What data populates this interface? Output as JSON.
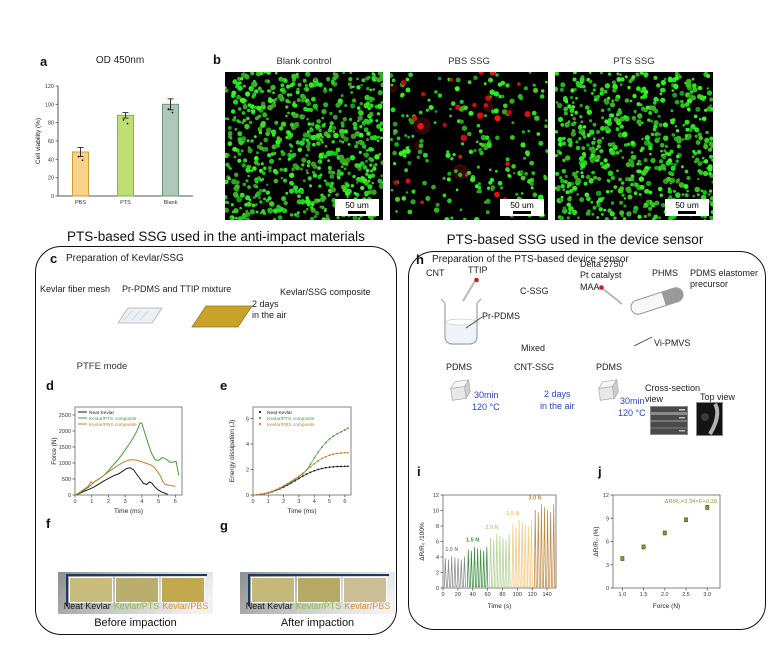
{
  "panels": {
    "a": "a",
    "b": "b",
    "c": "c",
    "d": "d",
    "e": "e",
    "f": "f",
    "g": "g",
    "h": "h",
    "i": "i",
    "j": "j"
  },
  "sections": {
    "left_title": "PTS-based SSG used in the anti-impact materials",
    "right_title": "PTS-based SSG used in the device sensor"
  },
  "panel_b": {
    "scale_label": "50 um",
    "images": [
      {
        "title": "Blank control",
        "seed": 11,
        "green_dots": 700,
        "red_dots": 0,
        "dim_red_blobs": 0
      },
      {
        "title": "PBS SSG",
        "seed": 22,
        "green_dots": 215,
        "red_dots": 26,
        "dim_red_blobs": 5
      },
      {
        "title": "PTS SSG",
        "seed": 33,
        "green_dots": 620,
        "red_dots": 0,
        "dim_red_blobs": 0
      }
    ]
  },
  "panel_c": {
    "title": "Preparation of Kevlar/SSG",
    "mesh_label": "Kevlar fiber mesh",
    "mixture_label": "Pr-PDMS and TTIP mixture",
    "composite_label": "Kevlar/SSG composite",
    "condition_line1": "2 days",
    "condition_line2": "in the air",
    "mesh_color": "#eceff4",
    "composite_color": "#c8a22b"
  },
  "panel_d": {
    "mode_title": "PTFE mode"
  },
  "panel_f": {
    "caption": "Before impaction",
    "labels": [
      "Neat Kevlar",
      "Kevlar/PTS",
      "Kevlar/PBS"
    ],
    "label_colors": [
      "#1a1a1a",
      "#8bbb4a",
      "#d9952f"
    ],
    "swatch_colors": [
      "#c9bd7e",
      "#b9ae6d",
      "#c2a94f"
    ]
  },
  "panel_g": {
    "caption": "After impaction",
    "labels": [
      "Neat Kevlar",
      "Kevlar/PTS",
      "Kevlar/PBS"
    ],
    "label_colors": [
      "#1a1a1a",
      "#8bbb4a",
      "#d9952f"
    ],
    "swatch_colors": [
      "#c4b87a",
      "#b5a966",
      "#cbbd94"
    ]
  },
  "panel_h": {
    "title": "Preparation of the PTS-based device sensor",
    "cnt": "CNT",
    "ttip": "TTIP",
    "cssg": "C-SSG",
    "delta": "Delta 2750",
    "pt_catalyst": "Pt catalyst",
    "maa": "MAA",
    "phms": "PHMS",
    "pdms_elastomer_1": "PDMS elastomer",
    "pdms_elastomer_2": "precursor",
    "pr_pdms": "Pr-PDMS",
    "mixed": "Mixed",
    "vi_pmvs": "Vi-PMVS",
    "pdms_left": "PDMS",
    "cnt_ssg": "CNT-SSG",
    "pdms_right": "PDMS",
    "cure1_line1": "30min",
    "cure1_line2": "120 °C",
    "air_line1": "2 days",
    "air_line2": "in the air",
    "cure2_line1": "30min",
    "cure2_line2": "120 °C",
    "cross_section_line1": "Cross-section",
    "cross_section_line2": "view",
    "top_view": "Top view",
    "blue_color": "#2943d0"
  },
  "chart_data": [
    {
      "id": "a",
      "type": "bar",
      "title": "OD 450nm",
      "ylabel": "Cell viability (%)",
      "xlim": [
        0,
        3
      ],
      "ylim": [
        0,
        120
      ],
      "yticks": [
        0,
        20,
        40,
        60,
        80,
        100,
        120
      ],
      "categories": [
        "PBS",
        "PTS",
        "Blank"
      ],
      "values": [
        48,
        88,
        100
      ],
      "errors": [
        5,
        3,
        6
      ],
      "bar_colors": [
        "#f7d489",
        "#bfdf72",
        "#aec9b9"
      ],
      "bar_edges": [
        "#cf9c3a",
        "#7fb843",
        "#72947f"
      ],
      "label_colors": [
        "#c3923d",
        "#7fb843",
        "#6e9180"
      ]
    },
    {
      "id": "d",
      "type": "line",
      "xlabel": "Time (ms)",
      "ylabel": "Force (N)",
      "xlim": [
        0,
        6.4
      ],
      "xticks": [
        0,
        1,
        2,
        3,
        4,
        5,
        6
      ],
      "ylim": [
        0,
        2750
      ],
      "yticks": [
        0,
        500,
        1000,
        1500,
        2000,
        2500
      ],
      "series": [
        {
          "name": "Neat Kevlar",
          "color": "#1a1a1a",
          "points": [
            [
              0,
              0
            ],
            [
              0.2,
              30
            ],
            [
              0.5,
              110
            ],
            [
              0.8,
              170
            ],
            [
              1.1,
              240
            ],
            [
              1.4,
              330
            ],
            [
              1.7,
              430
            ],
            [
              2.0,
              520
            ],
            [
              2.3,
              600
            ],
            [
              2.6,
              660
            ],
            [
              2.9,
              760
            ],
            [
              3.1,
              830
            ],
            [
              3.3,
              850
            ],
            [
              3.5,
              790
            ],
            [
              3.7,
              640
            ],
            [
              3.9,
              500
            ],
            [
              4.1,
              360
            ],
            [
              4.3,
              330
            ],
            [
              4.45,
              410
            ],
            [
              4.6,
              370
            ],
            [
              4.8,
              240
            ],
            [
              5.0,
              150
            ],
            [
              5.2,
              90
            ],
            [
              5.4,
              50
            ],
            [
              5.55,
              20
            ]
          ]
        },
        {
          "name": "Kevlar/PTS composite",
          "color": "#4a9b3c",
          "points": [
            [
              0,
              0
            ],
            [
              0.2,
              40
            ],
            [
              0.5,
              140
            ],
            [
              0.8,
              240
            ],
            [
              1.0,
              330
            ],
            [
              1.2,
              430
            ],
            [
              1.4,
              480
            ],
            [
              1.7,
              600
            ],
            [
              2.0,
              760
            ],
            [
              2.3,
              950
            ],
            [
              2.6,
              1120
            ],
            [
              2.9,
              1330
            ],
            [
              3.2,
              1560
            ],
            [
              3.5,
              1800
            ],
            [
              3.7,
              2000
            ],
            [
              3.9,
              2260
            ],
            [
              4.0,
              2230
            ],
            [
              4.2,
              1900
            ],
            [
              4.4,
              1560
            ],
            [
              4.6,
              1280
            ],
            [
              4.8,
              1100
            ],
            [
              5.0,
              1080
            ],
            [
              5.2,
              1170
            ],
            [
              5.35,
              1150
            ],
            [
              5.5,
              1100
            ],
            [
              5.7,
              1020
            ],
            [
              5.9,
              1030
            ],
            [
              6.05,
              1050
            ],
            [
              6.2,
              620
            ]
          ]
        },
        {
          "name": "Kevlar/PBS composite",
          "color": "#c97f2e",
          "points": [
            [
              0,
              0
            ],
            [
              0.2,
              60
            ],
            [
              0.5,
              170
            ],
            [
              0.8,
              280
            ],
            [
              0.95,
              420
            ],
            [
              1.05,
              370
            ],
            [
              1.2,
              430
            ],
            [
              1.5,
              530
            ],
            [
              1.8,
              640
            ],
            [
              2.1,
              760
            ],
            [
              2.4,
              870
            ],
            [
              2.7,
              970
            ],
            [
              3.0,
              1050
            ],
            [
              3.3,
              1100
            ],
            [
              3.6,
              1095
            ],
            [
              3.9,
              1060
            ],
            [
              4.2,
              1000
            ],
            [
              4.5,
              950
            ],
            [
              4.7,
              880
            ],
            [
              4.9,
              760
            ],
            [
              5.1,
              600
            ],
            [
              5.25,
              420
            ],
            [
              5.4,
              330
            ],
            [
              5.6,
              310
            ],
            [
              5.8,
              290
            ],
            [
              6.0,
              270
            ]
          ]
        }
      ]
    },
    {
      "id": "e",
      "type": "scatter-line",
      "xlabel": "Time (ms)",
      "ylabel": "Energy dissipation (J)",
      "xlim": [
        0,
        6.4
      ],
      "xticks": [
        0,
        1,
        2,
        3,
        4,
        5,
        6
      ],
      "ylim": [
        0,
        6.9
      ],
      "yticks": [
        0,
        2,
        4,
        6
      ],
      "series": [
        {
          "name": "Neat Kevlar",
          "color": "#1a1a1a",
          "points": [
            [
              0,
              0
            ],
            [
              0.25,
              0.02
            ],
            [
              0.5,
              0.05
            ],
            [
              0.75,
              0.1
            ],
            [
              1,
              0.16
            ],
            [
              1.25,
              0.25
            ],
            [
              1.5,
              0.36
            ],
            [
              1.75,
              0.48
            ],
            [
              2,
              0.62
            ],
            [
              2.25,
              0.78
            ],
            [
              2.5,
              0.95
            ],
            [
              2.75,
              1.12
            ],
            [
              3,
              1.3
            ],
            [
              3.25,
              1.48
            ],
            [
              3.5,
              1.64
            ],
            [
              3.75,
              1.78
            ],
            [
              4,
              1.9
            ],
            [
              4.25,
              2.0
            ],
            [
              4.5,
              2.08
            ],
            [
              4.75,
              2.14
            ],
            [
              5,
              2.18
            ],
            [
              5.25,
              2.21
            ],
            [
              5.5,
              2.23
            ],
            [
              5.75,
              2.24
            ],
            [
              6,
              2.25
            ],
            [
              6.2,
              2.25
            ]
          ]
        },
        {
          "name": "Kevlar/PTS composite",
          "color": "#4a9b3c",
          "points": [
            [
              0,
              0
            ],
            [
              0.25,
              0.02
            ],
            [
              0.5,
              0.05
            ],
            [
              0.75,
              0.1
            ],
            [
              1,
              0.17
            ],
            [
              1.25,
              0.27
            ],
            [
              1.5,
              0.38
            ],
            [
              1.75,
              0.52
            ],
            [
              2,
              0.68
            ],
            [
              2.25,
              0.85
            ],
            [
              2.5,
              1.03
            ],
            [
              2.75,
              1.22
            ],
            [
              3,
              1.42
            ],
            [
              3.25,
              1.65
            ],
            [
              3.5,
              1.95
            ],
            [
              3.75,
              2.4
            ],
            [
              4,
              2.9
            ],
            [
              4.25,
              3.35
            ],
            [
              4.5,
              3.75
            ],
            [
              4.75,
              4.1
            ],
            [
              5,
              4.4
            ],
            [
              5.25,
              4.62
            ],
            [
              5.5,
              4.8
            ],
            [
              5.75,
              4.95
            ],
            [
              6,
              5.1
            ],
            [
              6.2,
              5.25
            ]
          ]
        },
        {
          "name": "Kevlar/PBS composite",
          "color": "#c97f2e",
          "points": [
            [
              0,
              0
            ],
            [
              0.25,
              0.03
            ],
            [
              0.5,
              0.07
            ],
            [
              0.75,
              0.12
            ],
            [
              1,
              0.2
            ],
            [
              1.25,
              0.3
            ],
            [
              1.5,
              0.42
            ],
            [
              1.75,
              0.56
            ],
            [
              2,
              0.72
            ],
            [
              2.25,
              0.9
            ],
            [
              2.5,
              1.08
            ],
            [
              2.75,
              1.27
            ],
            [
              3,
              1.47
            ],
            [
              3.25,
              1.7
            ],
            [
              3.5,
              1.95
            ],
            [
              3.75,
              2.2
            ],
            [
              4,
              2.45
            ],
            [
              4.25,
              2.67
            ],
            [
              4.5,
              2.86
            ],
            [
              4.75,
              3.0
            ],
            [
              5,
              3.12
            ],
            [
              5.25,
              3.2
            ],
            [
              5.5,
              3.26
            ],
            [
              5.75,
              3.29
            ],
            [
              6,
              3.31
            ],
            [
              6.2,
              3.32
            ]
          ]
        }
      ]
    },
    {
      "id": "i",
      "type": "pulse",
      "xlabel": "Time (s)",
      "ylabel": "ΔR/R₀ /100%",
      "xlim": [
        0,
        152
      ],
      "xticks": [
        0,
        20,
        40,
        60,
        80,
        100,
        120,
        140
      ],
      "ylim": [
        0,
        12
      ],
      "yticks": [
        0,
        2,
        4,
        6,
        8,
        10,
        12
      ],
      "groups": [
        {
          "label": "1.0 N",
          "color": "#8c8c8c",
          "t0": 1,
          "t1": 31,
          "n": 7,
          "amp": 4.0,
          "lx": 3,
          "ly": 4.8
        },
        {
          "label": "1.5 N",
          "color": "#3c8f3f",
          "t0": 32,
          "t1": 61,
          "n": 7,
          "amp": 5.2,
          "lx": 31,
          "ly": 6.0
        },
        {
          "label": "2.0 N",
          "color": "#b2d191",
          "t0": 62,
          "t1": 91,
          "n": 7,
          "amp": 6.8,
          "lx": 57,
          "ly": 7.6
        },
        {
          "label": "2.5 N",
          "color": "#f3c77e",
          "t0": 92,
          "t1": 121,
          "n": 7,
          "amp": 8.6,
          "lx": 85,
          "ly": 9.4
        },
        {
          "label": "3.0 N",
          "color": "#c08a45",
          "t0": 122,
          "t1": 151,
          "n": 7,
          "amp": 10.6,
          "lx": 115,
          "ly": 11.4
        }
      ]
    },
    {
      "id": "j",
      "type": "scatter",
      "xlabel": "Force (N)",
      "ylabel": "ΔR/R₀ (%)",
      "xlim": [
        0.78,
        3.3
      ],
      "xticks": [
        1,
        1.5,
        2,
        2.5,
        3
      ],
      "xtick_labels": [
        "1.0",
        "1.5",
        "2.0",
        "2.5",
        "3.0"
      ],
      "ylim": [
        0,
        12
      ],
      "yticks": [
        0,
        3,
        6,
        9,
        12
      ],
      "color": "#97972a",
      "annotation": "ΔR/R₀=3.34×F+0.39",
      "x": [
        1.0,
        1.5,
        2.0,
        2.5,
        3.0
      ],
      "y": [
        3.8,
        5.3,
        7.1,
        8.8,
        10.4
      ],
      "yerr": 0.25
    }
  ]
}
